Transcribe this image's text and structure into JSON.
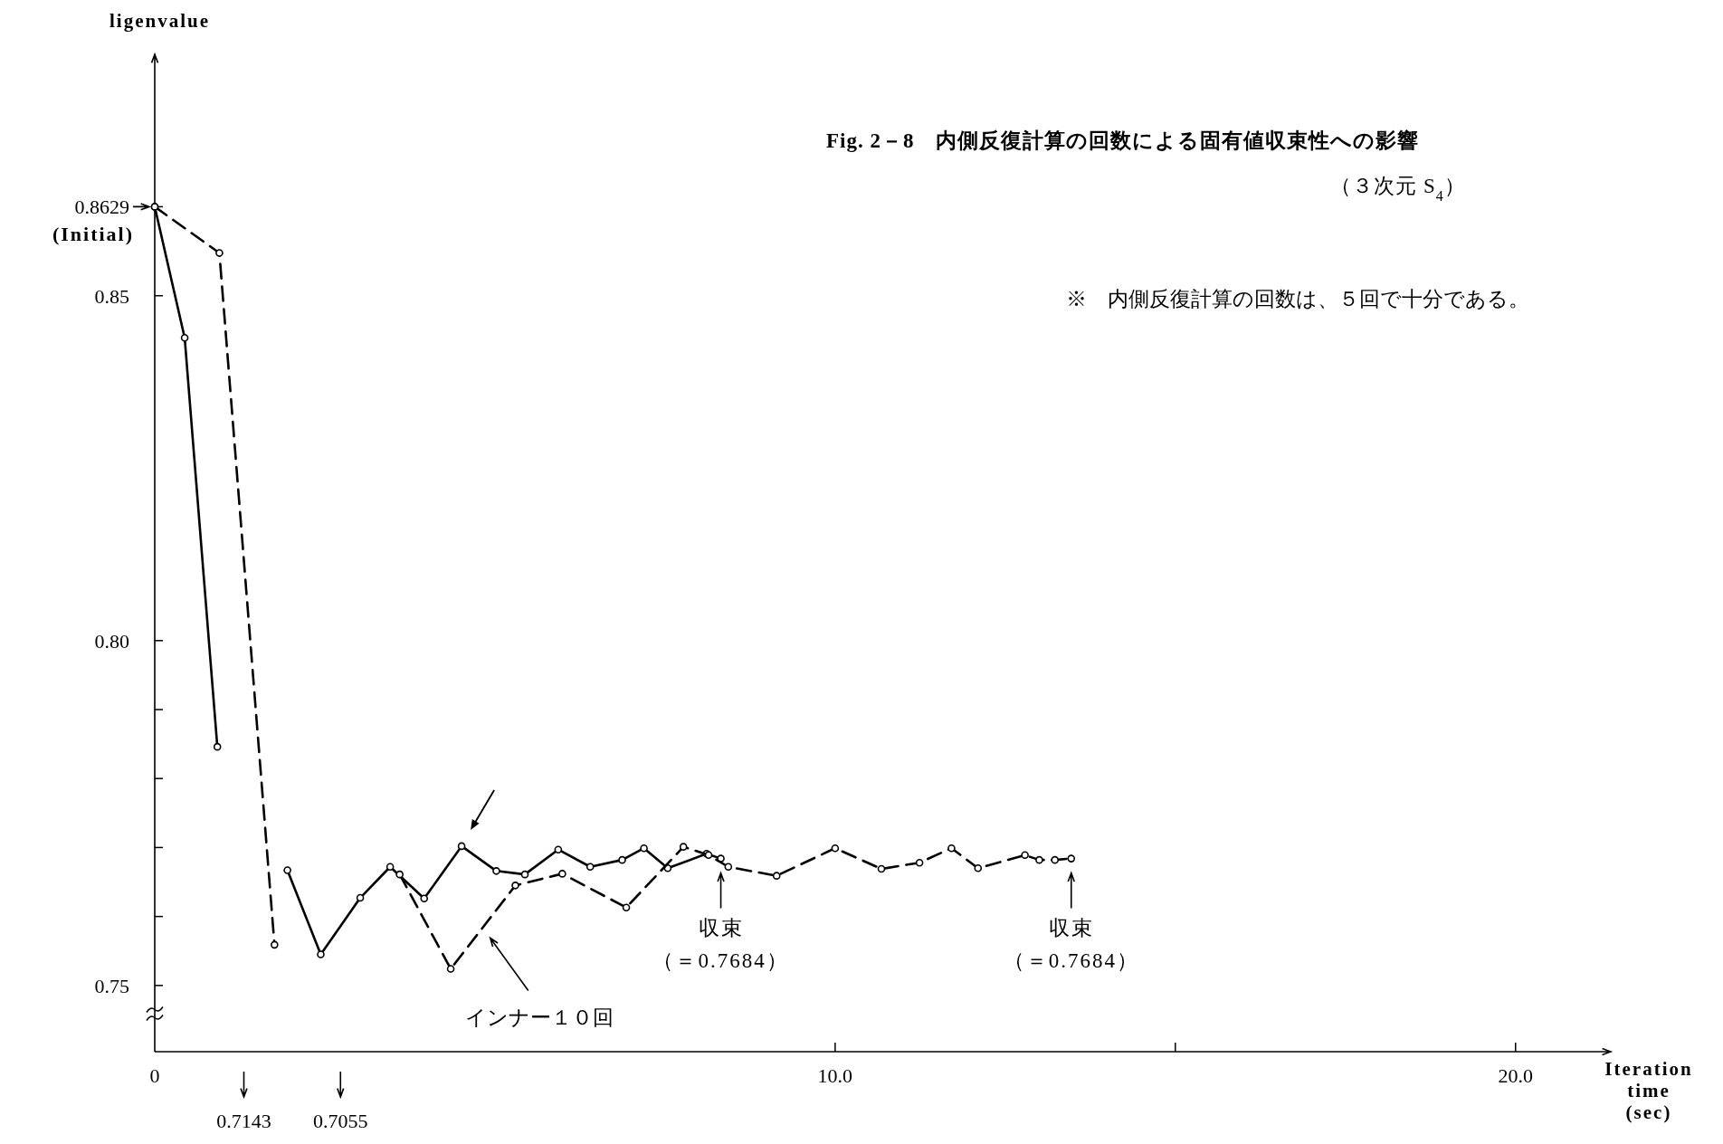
{
  "chart_data": {
    "type": "line",
    "title": "Fig. 2－8　内側反復計算の回数による固有値収束性への影響",
    "subtitle": "（３次元 S$_{4}$）",
    "xlabel": "Iteration time (sec)",
    "ylabel": "ligenvalue",
    "xlim": [
      0,
      21.4
    ],
    "ylim": [
      0.7404,
      0.885
    ],
    "xticks": [
      0,
      {
        "value": 10,
        "label": "10.0"
      },
      {
        "value": 15,
        "label": null
      },
      {
        "value": 20,
        "label": "20.0"
      }
    ],
    "yticks": [
      0.75,
      {
        "value": 0.76,
        "label": null
      },
      {
        "value": 0.77,
        "label": null
      },
      {
        "value": 0.78,
        "label": null
      },
      {
        "value": 0.79,
        "label": null
      },
      {
        "value": 0.8,
        "label": "0.80"
      },
      0.85,
      0.8629
    ],
    "marker": "circle",
    "series": [
      {
        "color": "#000000",
        "line_style": "solid",
        "x": [
          0,
          0.44,
          0.92,
          1.31,
          1.95,
          2.44,
          3.02,
          3.46,
          3.96,
          4.51,
          5.02,
          5.44,
          5.93,
          6.4,
          6.87,
          7.19,
          7.54,
          8.11,
          8.32
        ],
        "values": [
          0.8629,
          0.8439,
          0.7846,
          null,
          0.7667,
          0.7545,
          0.7627,
          0.7672,
          0.7626,
          0.7702,
          0.7666,
          0.7661,
          0.7697,
          0.7672,
          0.7682,
          0.7699,
          0.767,
          0.7691,
          0.7684
        ]
      },
      {
        "name": "インナー１０回",
        "color": "#000000",
        "line_style": "dashed",
        "x": [
          0,
          0.95,
          1.76,
          2.73,
          3.6,
          4.35,
          5.3,
          5.99,
          6.93,
          7.77,
          8.14,
          8.43,
          9.14,
          10.0,
          10.68,
          11.24,
          11.71,
          12.1,
          12.79,
          13.0,
          13.23,
          13.47
        ],
        "values": [
          0.8629,
          0.8562,
          0.7559,
          null,
          0.7661,
          0.7524,
          0.7645,
          0.7662,
          0.7613,
          0.7701,
          0.7689,
          0.7672,
          0.7659,
          0.7699,
          0.7669,
          0.7678,
          0.7699,
          0.767,
          0.7689,
          0.7682,
          0.7682,
          0.7684
        ]
      }
    ],
    "annotations": [
      {
        "text": "(Initial)",
        "x": 0,
        "y": 0.8629
      },
      "0.7143",
      "0.7055",
      {
        "text": "収束",
        "x": 8.32,
        "y": 0.7684
      },
      "（＝0.7684）",
      {
        "text": "収束",
        "x": 13.47,
        "y": 0.7684
      },
      "（＝0.7684）",
      {
        "text": "※　内側反復計算の回数は、５回で十分である。"
      }
    ]
  }
}
